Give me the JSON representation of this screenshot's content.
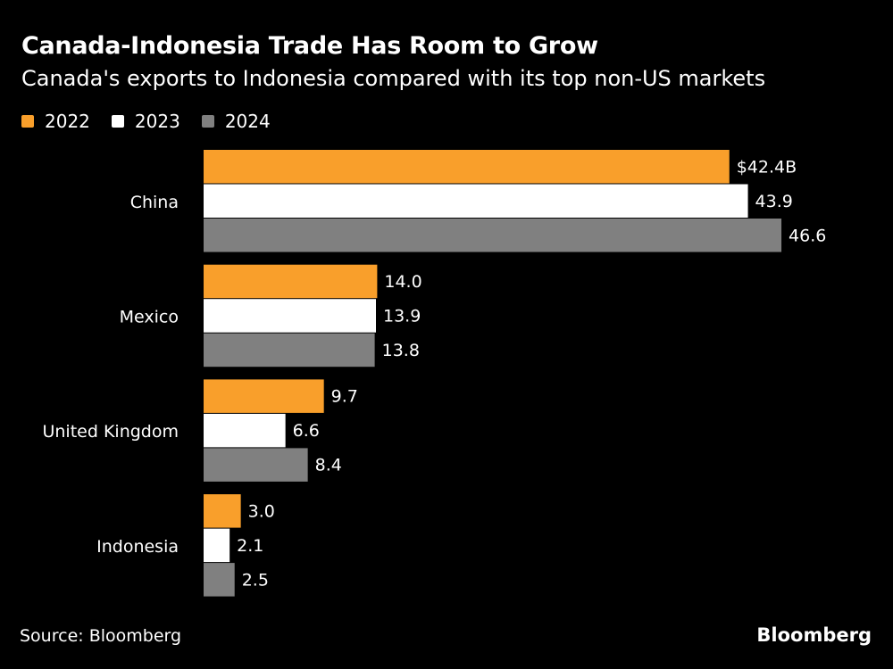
{
  "chart_data": {
    "type": "bar",
    "orientation": "horizontal",
    "title": "Canada-Indonesia Trade Has Room to Grow",
    "subtitle": "Canada's exports to Indonesia compared with its top non-US markets",
    "categories": [
      "China",
      "Mexico",
      "United Kingdom",
      "Indonesia"
    ],
    "series": [
      {
        "name": "2022",
        "color": "#f99f2b",
        "values": [
          42.4,
          14.0,
          9.7,
          3.0
        ],
        "labels": [
          "$42.4B",
          "14.0",
          "9.7",
          "3.0"
        ]
      },
      {
        "name": "2023",
        "color": "#ffffff",
        "values": [
          43.9,
          13.9,
          6.6,
          2.1
        ],
        "labels": [
          "43.9",
          "13.9",
          "6.6",
          "2.1"
        ]
      },
      {
        "name": "2024",
        "color": "#808080",
        "values": [
          46.6,
          13.8,
          8.4,
          2.5
        ],
        "labels": [
          "46.6",
          "13.8",
          "8.4",
          "2.5"
        ]
      }
    ],
    "unit": "$B",
    "grid": false,
    "legend_position": "top-left"
  },
  "footer": {
    "source": "Source: Bloomberg",
    "brand": "Bloomberg"
  }
}
